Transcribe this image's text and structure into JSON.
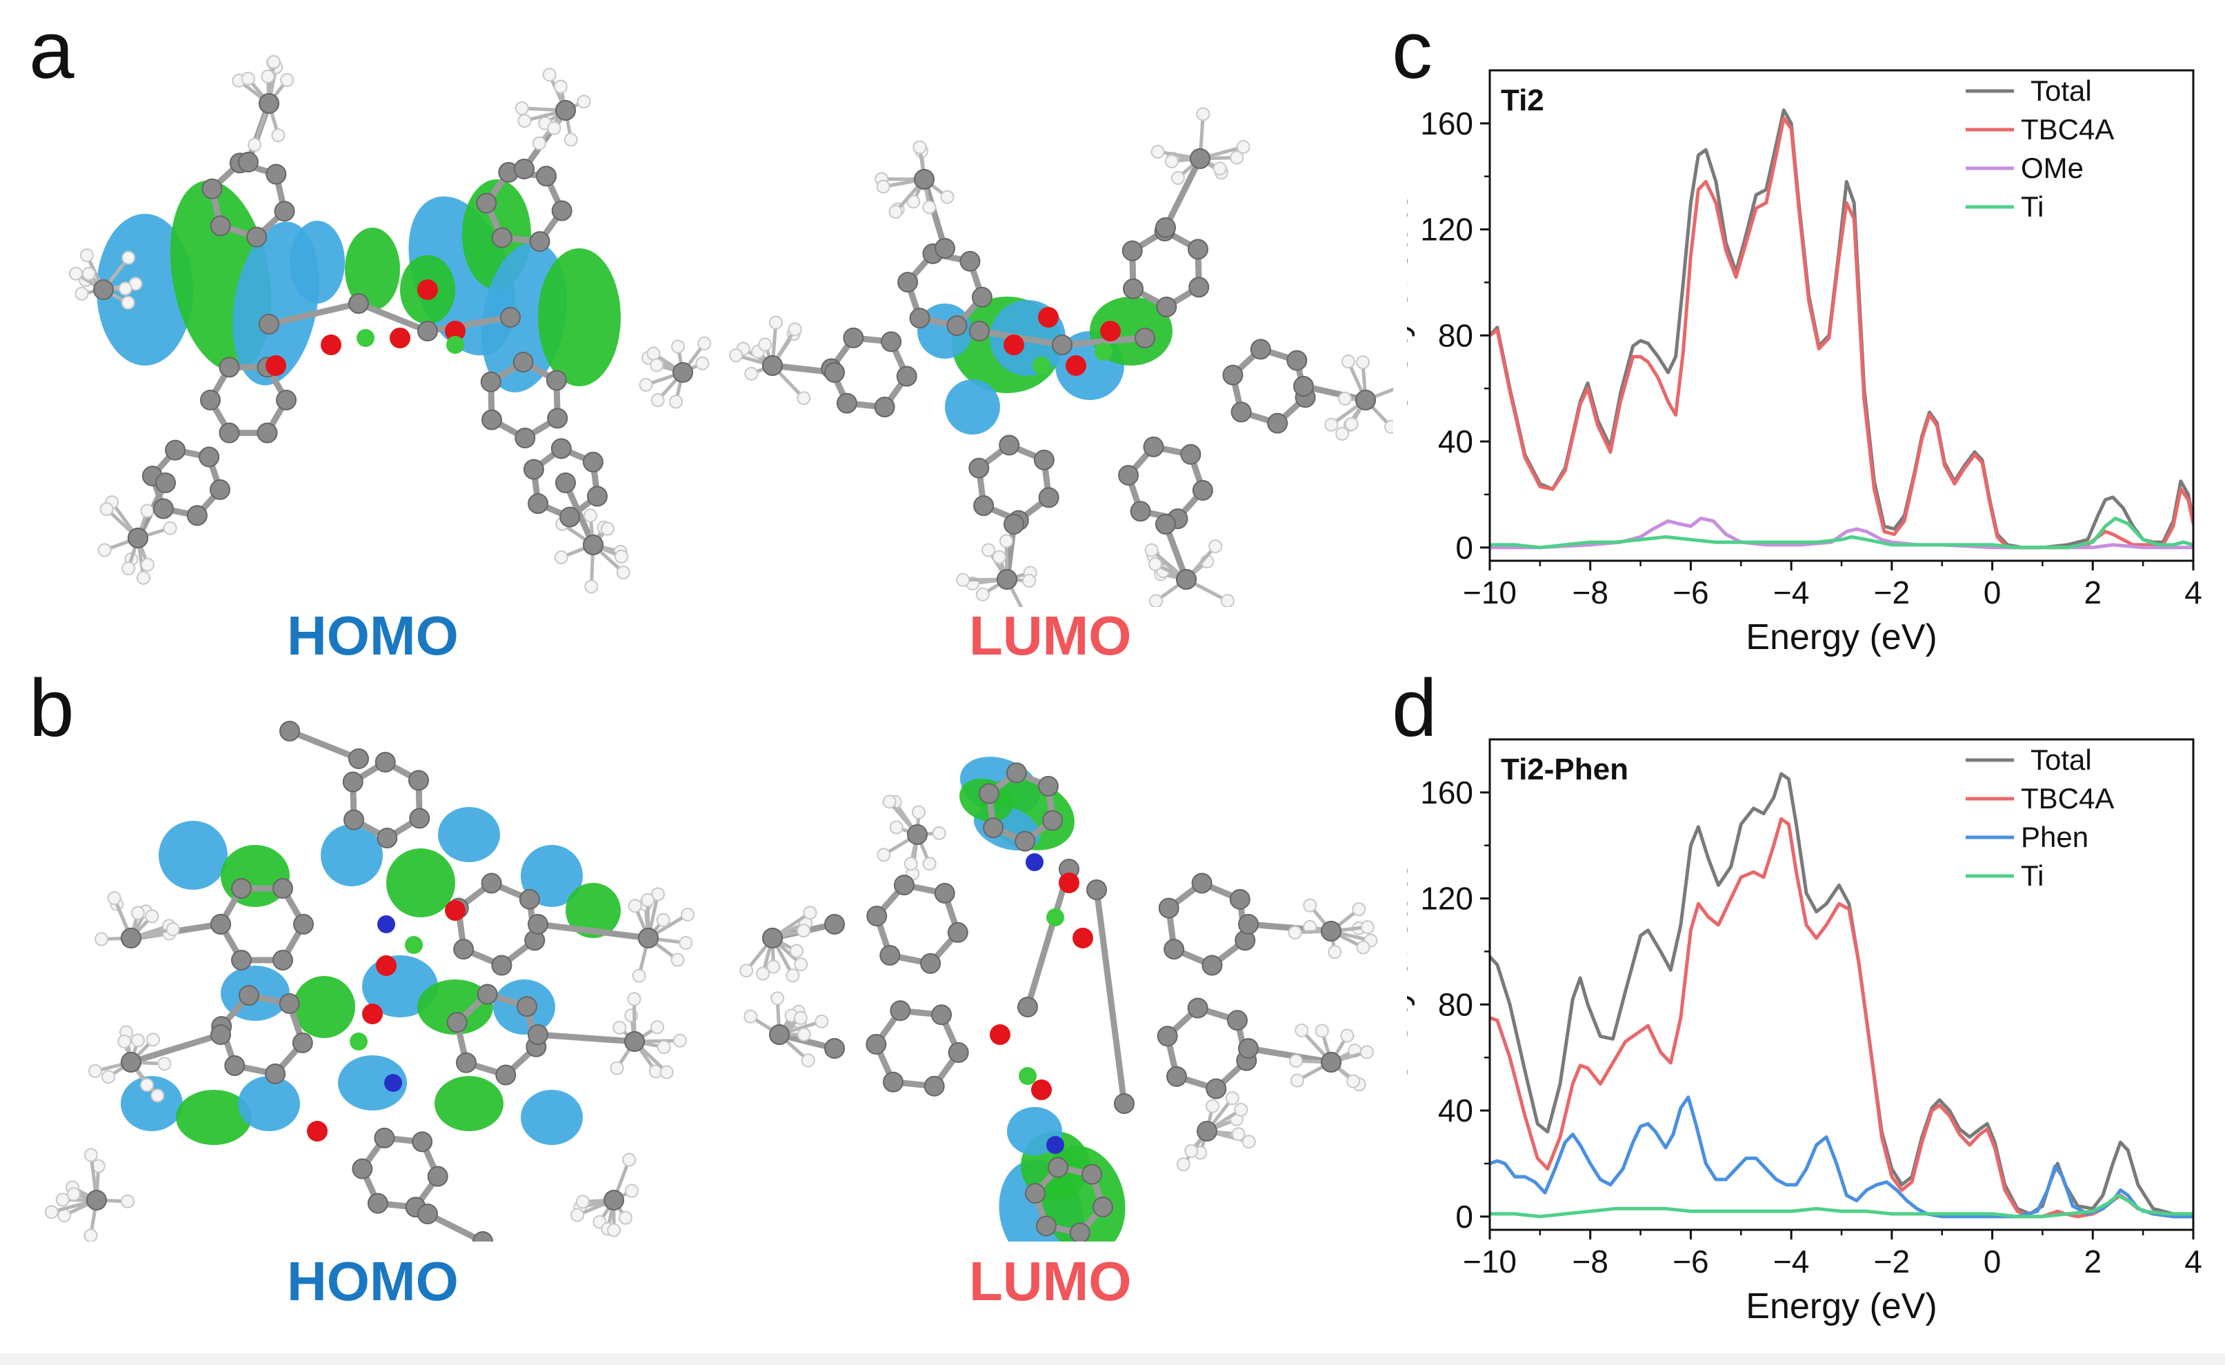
{
  "panels": {
    "a": {
      "letter": "a",
      "homo_label": "HOMO",
      "lumo_label": "LUMO"
    },
    "b": {
      "letter": "b",
      "homo_label": "HOMO",
      "lumo_label": "LUMO"
    },
    "c": {
      "letter": "c"
    },
    "d": {
      "letter": "d"
    }
  },
  "colors": {
    "homo": "#1a78c2",
    "lumo": "#f0565a",
    "orbital_blue": "#3fa9e0",
    "orbital_green": "#27c02e",
    "atom_gray": "#8a8a8a",
    "oxygen": "#e3141b",
    "nitrogen": "#2630c9",
    "titanium": "#3ccb3c",
    "total": "#7a7a7a",
    "tbc4a": "#e8686a",
    "ome": "#c88ee0",
    "phen": "#4a90e2",
    "ti": "#4fd08a"
  },
  "chart_data": [
    {
      "type": "line",
      "panel": "c",
      "title": "Ti2",
      "xlabel": "Energy (eV)",
      "ylabel": "Density of state",
      "xlim": [
        -10,
        4
      ],
      "ylim": [
        -5,
        180
      ],
      "xticks": [
        -10,
        -8,
        -6,
        -4,
        -2,
        0,
        2,
        4
      ],
      "yticks": [
        0,
        40,
        80,
        120,
        160
      ],
      "xtick_labels": [
        "−10",
        "−8",
        "−6",
        "−4",
        "−2",
        "0",
        "2",
        "4"
      ],
      "ytick_labels": [
        "0",
        "40",
        "80",
        "120",
        "160"
      ],
      "legend_position": "top-right",
      "series": [
        {
          "name": "Total",
          "color": "#7a7a7a",
          "x": [
            -10,
            -9.85,
            -9.6,
            -9.3,
            -9.0,
            -8.75,
            -8.5,
            -8.2,
            -8.05,
            -7.85,
            -7.6,
            -7.4,
            -7.15,
            -7.0,
            -6.85,
            -6.65,
            -6.45,
            -6.3,
            -6.15,
            -6.0,
            -5.85,
            -5.7,
            -5.5,
            -5.3,
            -5.1,
            -4.9,
            -4.7,
            -4.5,
            -4.3,
            -4.15,
            -4.0,
            -3.85,
            -3.65,
            -3.45,
            -3.25,
            -3.05,
            -2.9,
            -2.75,
            -2.55,
            -2.35,
            -2.15,
            -1.95,
            -1.75,
            -1.55,
            -1.4,
            -1.25,
            -1.1,
            -0.95,
            -0.75,
            -0.55,
            -0.35,
            -0.2,
            -0.05,
            0.1,
            0.3,
            0.6,
            1.0,
            1.5,
            1.9,
            2.1,
            2.25,
            2.4,
            2.6,
            2.8,
            3.0,
            3.2,
            3.4,
            3.6,
            3.75,
            3.9,
            4.0
          ],
          "y": [
            80,
            83,
            60,
            35,
            24,
            22,
            30,
            55,
            62,
            48,
            38,
            58,
            76,
            78,
            77,
            72,
            66,
            72,
            100,
            130,
            148,
            150,
            138,
            115,
            104,
            118,
            133,
            135,
            152,
            165,
            160,
            130,
            95,
            76,
            80,
            112,
            138,
            130,
            60,
            25,
            8,
            7,
            12,
            28,
            42,
            51,
            47,
            32,
            25,
            31,
            36,
            33,
            18,
            5,
            1,
            0,
            0,
            1,
            3,
            12,
            18,
            19,
            15,
            8,
            3,
            2,
            2,
            10,
            25,
            20,
            10
          ]
        },
        {
          "name": "TBC4A",
          "color": "#e8686a",
          "x": [
            -10,
            -9.85,
            -9.6,
            -9.3,
            -9.0,
            -8.75,
            -8.5,
            -8.2,
            -8.05,
            -7.85,
            -7.6,
            -7.4,
            -7.15,
            -7.0,
            -6.85,
            -6.65,
            -6.45,
            -6.3,
            -6.15,
            -6.0,
            -5.85,
            -5.7,
            -5.5,
            -5.3,
            -5.1,
            -4.9,
            -4.7,
            -4.5,
            -4.3,
            -4.15,
            -4.0,
            -3.85,
            -3.65,
            -3.45,
            -3.25,
            -3.05,
            -2.9,
            -2.75,
            -2.55,
            -2.35,
            -2.15,
            -1.95,
            -1.75,
            -1.55,
            -1.4,
            -1.25,
            -1.1,
            -0.95,
            -0.75,
            -0.55,
            -0.35,
            -0.2,
            -0.05,
            0.1,
            0.3,
            0.6,
            1.0,
            1.5,
            1.9,
            2.1,
            2.25,
            2.4,
            2.6,
            2.8,
            3.0,
            3.2,
            3.4,
            3.6,
            3.75,
            3.9,
            4.0
          ],
          "y": [
            80,
            82,
            59,
            34,
            23,
            22,
            29,
            54,
            60,
            46,
            36,
            55,
            72,
            72,
            70,
            64,
            55,
            50,
            74,
            110,
            135,
            138,
            130,
            112,
            102,
            115,
            128,
            130,
            148,
            162,
            158,
            128,
            93,
            75,
            79,
            110,
            130,
            124,
            56,
            22,
            6,
            5,
            10,
            27,
            41,
            50,
            46,
            31,
            24,
            30,
            35,
            32,
            17,
            4,
            0,
            0,
            0,
            0,
            1,
            4,
            6,
            5,
            3,
            1,
            1,
            1,
            1,
            8,
            22,
            18,
            9
          ]
        },
        {
          "name": "OMe",
          "color": "#c88ee0",
          "x": [
            -10,
            -9.0,
            -8.0,
            -7.4,
            -7.0,
            -6.75,
            -6.45,
            -6.25,
            -6.0,
            -5.8,
            -5.55,
            -5.3,
            -5.0,
            -4.5,
            -3.8,
            -3.2,
            -2.9,
            -2.7,
            -2.5,
            -2.2,
            -2.0,
            -1.5,
            -1.0,
            0.0,
            1.0,
            2.0,
            2.4,
            3.0,
            4.0
          ],
          "y": [
            0,
            0,
            1,
            2,
            4,
            7,
            10,
            9,
            8,
            11,
            10,
            5,
            2,
            1,
            1,
            2,
            6,
            7,
            6,
            3,
            2,
            1,
            1,
            0,
            0,
            0,
            1,
            0,
            0
          ]
        },
        {
          "name": "Ti",
          "color": "#4fd08a",
          "x": [
            -10,
            -9.5,
            -9.0,
            -8.5,
            -8.0,
            -7.5,
            -7.0,
            -6.5,
            -6.0,
            -5.5,
            -5.0,
            -4.5,
            -4.0,
            -3.5,
            -3.0,
            -2.8,
            -2.5,
            -2.0,
            -1.5,
            -1.0,
            -0.5,
            0.0,
            0.5,
            1.0,
            1.5,
            2.0,
            2.25,
            2.45,
            2.7,
            3.0,
            3.3,
            3.6,
            3.8,
            4.0
          ],
          "y": [
            1,
            1,
            0,
            1,
            2,
            2,
            3,
            4,
            3,
            2,
            2,
            2,
            2,
            2,
            3,
            4,
            3,
            1,
            1,
            1,
            1,
            1,
            0,
            0,
            0,
            2,
            8,
            11,
            9,
            3,
            1,
            1,
            2,
            1
          ]
        }
      ]
    },
    {
      "type": "line",
      "panel": "d",
      "title": "Ti2-Phen",
      "xlabel": "Energy (eV)",
      "ylabel": "Density of state",
      "xlim": [
        -10,
        4
      ],
      "ylim": [
        -5,
        180
      ],
      "xticks": [
        -10,
        -8,
        -6,
        -4,
        -2,
        0,
        2,
        4
      ],
      "yticks": [
        0,
        40,
        80,
        120,
        160
      ],
      "xtick_labels": [
        "−10",
        "−8",
        "−6",
        "−4",
        "−2",
        "0",
        "2",
        "4"
      ],
      "ytick_labels": [
        "0",
        "40",
        "80",
        "120",
        "160"
      ],
      "legend_position": "top-right",
      "series": [
        {
          "name": "Total",
          "color": "#7a7a7a",
          "x": [
            -10,
            -9.85,
            -9.6,
            -9.3,
            -9.05,
            -8.85,
            -8.6,
            -8.35,
            -8.2,
            -8.05,
            -7.8,
            -7.55,
            -7.3,
            -7.0,
            -6.85,
            -6.6,
            -6.4,
            -6.2,
            -6.0,
            -5.85,
            -5.65,
            -5.45,
            -5.2,
            -5.0,
            -4.75,
            -4.55,
            -4.35,
            -4.2,
            -4.05,
            -3.9,
            -3.7,
            -3.5,
            -3.3,
            -3.05,
            -2.85,
            -2.65,
            -2.4,
            -2.2,
            -2.0,
            -1.8,
            -1.6,
            -1.4,
            -1.2,
            -1.05,
            -0.85,
            -0.65,
            -0.45,
            -0.25,
            -0.1,
            0.05,
            0.25,
            0.5,
            0.75,
            1.0,
            1.15,
            1.3,
            1.45,
            1.7,
            2.0,
            2.2,
            2.4,
            2.55,
            2.7,
            2.9,
            3.2,
            3.6,
            4.0
          ],
          "y": [
            98,
            95,
            80,
            55,
            35,
            32,
            50,
            82,
            90,
            80,
            68,
            67,
            85,
            106,
            108,
            100,
            93,
            110,
            140,
            147,
            135,
            125,
            132,
            148,
            154,
            152,
            158,
            167,
            165,
            148,
            122,
            115,
            118,
            125,
            118,
            95,
            60,
            32,
            18,
            12,
            15,
            30,
            41,
            44,
            40,
            33,
            30,
            33,
            35,
            28,
            12,
            3,
            1,
            4,
            13,
            20,
            12,
            4,
            3,
            8,
            20,
            28,
            25,
            12,
            3,
            1,
            1
          ]
        },
        {
          "name": "TBC4A",
          "color": "#e8686a",
          "x": [
            -10,
            -9.85,
            -9.6,
            -9.3,
            -9.05,
            -8.85,
            -8.6,
            -8.35,
            -8.2,
            -8.05,
            -7.8,
            -7.55,
            -7.3,
            -7.0,
            -6.85,
            -6.6,
            -6.4,
            -6.2,
            -6.0,
            -5.85,
            -5.65,
            -5.45,
            -5.2,
            -5.0,
            -4.75,
            -4.55,
            -4.35,
            -4.2,
            -4.05,
            -3.9,
            -3.7,
            -3.5,
            -3.3,
            -3.05,
            -2.85,
            -2.65,
            -2.4,
            -2.2,
            -2.0,
            -1.8,
            -1.6,
            -1.4,
            -1.2,
            -1.05,
            -0.85,
            -0.65,
            -0.45,
            -0.25,
            -0.1,
            0.05,
            0.25,
            0.5,
            0.75,
            1.0,
            1.15,
            1.3,
            1.45,
            1.7,
            2.0,
            2.2,
            2.4,
            2.55,
            2.7,
            2.9,
            3.2,
            3.6,
            4.0
          ],
          "y": [
            75,
            74,
            60,
            38,
            22,
            18,
            30,
            50,
            57,
            56,
            50,
            58,
            66,
            70,
            72,
            62,
            58,
            75,
            108,
            118,
            113,
            110,
            120,
            128,
            130,
            128,
            140,
            150,
            148,
            130,
            110,
            105,
            110,
            118,
            116,
            95,
            60,
            30,
            15,
            10,
            13,
            28,
            40,
            42,
            38,
            31,
            27,
            31,
            33,
            26,
            10,
            2,
            0,
            0,
            1,
            2,
            1,
            0,
            1,
            3,
            6,
            8,
            6,
            3,
            1,
            0,
            0
          ]
        },
        {
          "name": "Phen",
          "color": "#4a90e2",
          "x": [
            -10,
            -9.85,
            -9.7,
            -9.5,
            -9.3,
            -9.1,
            -8.9,
            -8.7,
            -8.5,
            -8.35,
            -8.2,
            -8.0,
            -7.8,
            -7.6,
            -7.35,
            -7.15,
            -7.0,
            -6.85,
            -6.7,
            -6.5,
            -6.35,
            -6.2,
            -6.05,
            -5.9,
            -5.7,
            -5.5,
            -5.3,
            -5.1,
            -4.9,
            -4.7,
            -4.5,
            -4.3,
            -4.1,
            -3.9,
            -3.7,
            -3.5,
            -3.3,
            -3.1,
            -2.9,
            -2.7,
            -2.5,
            -2.3,
            -2.1,
            -1.9,
            -1.7,
            -1.5,
            -1.3,
            -1.0,
            -0.5,
            0.0,
            0.5,
            0.9,
            1.1,
            1.25,
            1.4,
            1.6,
            1.9,
            2.2,
            2.4,
            2.55,
            2.7,
            2.9,
            3.2,
            3.6,
            4.0
          ],
          "y": [
            20,
            21,
            20,
            15,
            15,
            13,
            9,
            18,
            28,
            31,
            27,
            20,
            14,
            12,
            18,
            28,
            34,
            35,
            32,
            26,
            31,
            41,
            45,
            35,
            20,
            14,
            14,
            18,
            22,
            22,
            18,
            14,
            12,
            12,
            18,
            27,
            30,
            20,
            8,
            6,
            10,
            12,
            13,
            10,
            6,
            3,
            1,
            0,
            0,
            0,
            0,
            2,
            10,
            19,
            15,
            4,
            1,
            3,
            6,
            10,
            8,
            3,
            1,
            0,
            0
          ]
        },
        {
          "name": "Ti",
          "color": "#4fd08a",
          "x": [
            -10,
            -9.5,
            -9.0,
            -8.5,
            -8.0,
            -7.5,
            -7.0,
            -6.5,
            -6.0,
            -5.5,
            -5.0,
            -4.5,
            -4.0,
            -3.5,
            -3.0,
            -2.5,
            -2.0,
            -1.5,
            -1.0,
            -0.5,
            0.0,
            0.5,
            1.0,
            1.5,
            2.0,
            2.3,
            2.5,
            2.7,
            3.0,
            3.5,
            4.0
          ],
          "y": [
            1,
            1,
            0,
            1,
            2,
            3,
            3,
            3,
            2,
            2,
            2,
            2,
            2,
            3,
            2,
            2,
            1,
            1,
            1,
            1,
            1,
            0,
            0,
            1,
            2,
            5,
            8,
            6,
            2,
            1,
            1
          ]
        }
      ]
    }
  ]
}
